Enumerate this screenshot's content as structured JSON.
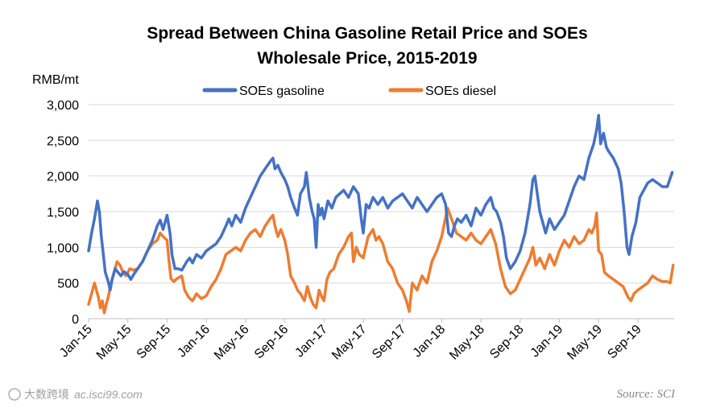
{
  "chart_data": {
    "type": "line",
    "title_line1": "Spread Between China Gasoline Retail Price and SOEs",
    "title_line2": "Wholesale Price, 2015-2019",
    "ylabel": "RMB/mt",
    "ylim": [
      0,
      3000
    ],
    "yticks": [
      0,
      500,
      1000,
      1500,
      2000,
      2500,
      3000
    ],
    "ytick_labels": [
      "0",
      "500",
      "1,000",
      "1,500",
      "2,000",
      "2,500",
      "3,000"
    ],
    "xlim": [
      0,
      59.7
    ],
    "xticks": [
      0,
      4,
      8,
      12,
      16,
      20,
      24,
      28,
      32,
      36,
      40,
      44,
      48,
      52,
      56
    ],
    "xtick_labels": [
      "Jan-15",
      "May-15",
      "Sep-15",
      "Jan-16",
      "May-16",
      "Sep-16",
      "Jan-17",
      "May-17",
      "Sep-17",
      "Jan-18",
      "May-18",
      "Sep-18",
      "Jan-19",
      "May-19",
      "Sep-19"
    ],
    "x_unit": "months since Jan-2015",
    "grid": true,
    "legend_position": "top-center",
    "series": [
      {
        "name": "SOEs gasoline",
        "color": "#4472C4",
        "points": [
          [
            0,
            950
          ],
          [
            0.3,
            1200
          ],
          [
            0.6,
            1400
          ],
          [
            0.9,
            1650
          ],
          [
            1.1,
            1500
          ],
          [
            1.3,
            1150
          ],
          [
            1.5,
            900
          ],
          [
            1.7,
            650
          ],
          [
            2.0,
            520
          ],
          [
            2.2,
            400
          ],
          [
            2.4,
            550
          ],
          [
            2.7,
            700
          ],
          [
            3.0,
            650
          ],
          [
            3.3,
            600
          ],
          [
            3.6,
            660
          ],
          [
            4.0,
            620
          ],
          [
            4.3,
            550
          ],
          [
            4.6,
            620
          ],
          [
            5.0,
            700
          ],
          [
            5.5,
            800
          ],
          [
            6.0,
            950
          ],
          [
            6.5,
            1100
          ],
          [
            7.0,
            1300
          ],
          [
            7.3,
            1380
          ],
          [
            7.6,
            1250
          ],
          [
            8.0,
            1450
          ],
          [
            8.3,
            1200
          ],
          [
            8.5,
            900
          ],
          [
            8.8,
            700
          ],
          [
            9.1,
            700
          ],
          [
            9.5,
            680
          ],
          [
            10.0,
            800
          ],
          [
            10.3,
            850
          ],
          [
            10.6,
            780
          ],
          [
            11.0,
            900
          ],
          [
            11.5,
            850
          ],
          [
            12.0,
            950
          ],
          [
            12.5,
            1000
          ],
          [
            13.0,
            1050
          ],
          [
            13.5,
            1150
          ],
          [
            14.0,
            1300
          ],
          [
            14.3,
            1400
          ],
          [
            14.6,
            1300
          ],
          [
            15.0,
            1450
          ],
          [
            15.5,
            1350
          ],
          [
            16.0,
            1550
          ],
          [
            16.5,
            1700
          ],
          [
            17.0,
            1850
          ],
          [
            17.5,
            2000
          ],
          [
            18.0,
            2100
          ],
          [
            18.5,
            2200
          ],
          [
            18.8,
            2250
          ],
          [
            19.0,
            2100
          ],
          [
            19.3,
            2150
          ],
          [
            19.6,
            2050
          ],
          [
            20.0,
            1950
          ],
          [
            20.3,
            1850
          ],
          [
            20.6,
            1700
          ],
          [
            21.0,
            1550
          ],
          [
            21.3,
            1450
          ],
          [
            21.6,
            1750
          ],
          [
            22.0,
            1850
          ],
          [
            22.2,
            2050
          ],
          [
            22.5,
            1700
          ],
          [
            22.8,
            1500
          ],
          [
            23.0,
            1400
          ],
          [
            23.2,
            1000
          ],
          [
            23.4,
            1600
          ],
          [
            23.6,
            1450
          ],
          [
            23.8,
            1550
          ],
          [
            24.0,
            1400
          ],
          [
            24.4,
            1650
          ],
          [
            24.8,
            1550
          ],
          [
            25.2,
            1700
          ],
          [
            25.6,
            1750
          ],
          [
            26.0,
            1800
          ],
          [
            26.5,
            1700
          ],
          [
            27.0,
            1850
          ],
          [
            27.5,
            1750
          ],
          [
            27.8,
            1400
          ],
          [
            28.0,
            1200
          ],
          [
            28.3,
            1600
          ],
          [
            28.6,
            1550
          ],
          [
            29.0,
            1700
          ],
          [
            29.5,
            1600
          ],
          [
            30.0,
            1700
          ],
          [
            30.5,
            1550
          ],
          [
            31.0,
            1650
          ],
          [
            31.5,
            1700
          ],
          [
            32.0,
            1750
          ],
          [
            32.5,
            1650
          ],
          [
            33.0,
            1550
          ],
          [
            33.5,
            1700
          ],
          [
            34.0,
            1600
          ],
          [
            34.5,
            1500
          ],
          [
            35.0,
            1600
          ],
          [
            35.5,
            1700
          ],
          [
            36.0,
            1750
          ],
          [
            36.4,
            1600
          ],
          [
            36.7,
            1200
          ],
          [
            37.0,
            1150
          ],
          [
            37.3,
            1300
          ],
          [
            37.6,
            1400
          ],
          [
            38.0,
            1350
          ],
          [
            38.5,
            1450
          ],
          [
            39.0,
            1300
          ],
          [
            39.5,
            1550
          ],
          [
            40.0,
            1450
          ],
          [
            40.5,
            1600
          ],
          [
            41.0,
            1700
          ],
          [
            41.3,
            1550
          ],
          [
            41.6,
            1500
          ],
          [
            42.0,
            1350
          ],
          [
            42.3,
            1150
          ],
          [
            42.6,
            850
          ],
          [
            43.0,
            700
          ],
          [
            43.5,
            800
          ],
          [
            44.0,
            950
          ],
          [
            44.5,
            1200
          ],
          [
            45.0,
            1600
          ],
          [
            45.3,
            1950
          ],
          [
            45.5,
            2000
          ],
          [
            45.8,
            1700
          ],
          [
            46.0,
            1500
          ],
          [
            46.3,
            1350
          ],
          [
            46.6,
            1200
          ],
          [
            47.0,
            1400
          ],
          [
            47.5,
            1250
          ],
          [
            48.0,
            1350
          ],
          [
            48.5,
            1450
          ],
          [
            49.0,
            1650
          ],
          [
            49.5,
            1850
          ],
          [
            50.0,
            2000
          ],
          [
            50.5,
            1950
          ],
          [
            51.0,
            2250
          ],
          [
            51.5,
            2450
          ],
          [
            51.8,
            2650
          ],
          [
            52.0,
            2850
          ],
          [
            52.2,
            2450
          ],
          [
            52.5,
            2600
          ],
          [
            52.8,
            2400
          ],
          [
            53.0,
            2350
          ],
          [
            53.5,
            2250
          ],
          [
            54.0,
            2100
          ],
          [
            54.3,
            1900
          ],
          [
            54.6,
            1500
          ],
          [
            54.9,
            1000
          ],
          [
            55.1,
            900
          ],
          [
            55.4,
            1150
          ],
          [
            55.8,
            1350
          ],
          [
            56.2,
            1700
          ],
          [
            56.6,
            1800
          ],
          [
            57.0,
            1900
          ],
          [
            57.5,
            1950
          ],
          [
            58.0,
            1900
          ],
          [
            58.5,
            1850
          ],
          [
            59.0,
            1850
          ],
          [
            59.5,
            2050
          ]
        ]
      },
      {
        "name": "SOEs diesel",
        "color": "#ED7D31",
        "points": [
          [
            0,
            200
          ],
          [
            0.3,
            350
          ],
          [
            0.6,
            500
          ],
          [
            0.8,
            400
          ],
          [
            1.0,
            300
          ],
          [
            1.2,
            150
          ],
          [
            1.4,
            250
          ],
          [
            1.6,
            80
          ],
          [
            1.8,
            200
          ],
          [
            2.0,
            300
          ],
          [
            2.3,
            500
          ],
          [
            2.6,
            650
          ],
          [
            2.9,
            800
          ],
          [
            3.2,
            750
          ],
          [
            3.5,
            650
          ],
          [
            3.8,
            600
          ],
          [
            4.2,
            700
          ],
          [
            4.6,
            680
          ],
          [
            5.0,
            700
          ],
          [
            5.5,
            800
          ],
          [
            6.0,
            950
          ],
          [
            6.5,
            1050
          ],
          [
            7.0,
            1100
          ],
          [
            7.3,
            1200
          ],
          [
            7.6,
            1150
          ],
          [
            8.0,
            1100
          ],
          [
            8.2,
            800
          ],
          [
            8.4,
            560
          ],
          [
            8.7,
            520
          ],
          [
            9.0,
            560
          ],
          [
            9.5,
            600
          ],
          [
            9.8,
            400
          ],
          [
            10.2,
            300
          ],
          [
            10.6,
            250
          ],
          [
            11.0,
            350
          ],
          [
            11.5,
            280
          ],
          [
            12.0,
            320
          ],
          [
            12.5,
            450
          ],
          [
            13.0,
            550
          ],
          [
            13.5,
            700
          ],
          [
            14.0,
            900
          ],
          [
            14.5,
            950
          ],
          [
            15.0,
            1000
          ],
          [
            15.5,
            950
          ],
          [
            16.0,
            1100
          ],
          [
            16.5,
            1200
          ],
          [
            17.0,
            1250
          ],
          [
            17.5,
            1150
          ],
          [
            18.0,
            1300
          ],
          [
            18.5,
            1400
          ],
          [
            18.8,
            1450
          ],
          [
            19.0,
            1300
          ],
          [
            19.3,
            1150
          ],
          [
            19.6,
            1250
          ],
          [
            20.0,
            1100
          ],
          [
            20.3,
            900
          ],
          [
            20.6,
            600
          ],
          [
            21.0,
            500
          ],
          [
            21.3,
            400
          ],
          [
            21.6,
            350
          ],
          [
            22.0,
            250
          ],
          [
            22.3,
            450
          ],
          [
            22.6,
            300
          ],
          [
            22.9,
            200
          ],
          [
            23.2,
            150
          ],
          [
            23.5,
            400
          ],
          [
            23.8,
            300
          ],
          [
            24.0,
            250
          ],
          [
            24.3,
            550
          ],
          [
            24.6,
            650
          ],
          [
            25.0,
            700
          ],
          [
            25.5,
            900
          ],
          [
            26.0,
            1000
          ],
          [
            26.5,
            1150
          ],
          [
            26.8,
            1200
          ],
          [
            27.0,
            800
          ],
          [
            27.3,
            1000
          ],
          [
            27.6,
            900
          ],
          [
            28.0,
            850
          ],
          [
            28.5,
            1150
          ],
          [
            29.0,
            1250
          ],
          [
            29.3,
            1100
          ],
          [
            29.6,
            1150
          ],
          [
            30.0,
            1050
          ],
          [
            30.5,
            800
          ],
          [
            31.0,
            700
          ],
          [
            31.5,
            500
          ],
          [
            32.0,
            400
          ],
          [
            32.4,
            250
          ],
          [
            32.7,
            100
          ],
          [
            33.0,
            500
          ],
          [
            33.5,
            400
          ],
          [
            34.0,
            600
          ],
          [
            34.5,
            500
          ],
          [
            35.0,
            800
          ],
          [
            35.5,
            950
          ],
          [
            36.0,
            1150
          ],
          [
            36.3,
            1350
          ],
          [
            36.6,
            1550
          ],
          [
            37.0,
            1400
          ],
          [
            37.5,
            1200
          ],
          [
            38.0,
            1150
          ],
          [
            38.5,
            1100
          ],
          [
            39.0,
            1200
          ],
          [
            39.5,
            1100
          ],
          [
            40.0,
            1050
          ],
          [
            40.5,
            1150
          ],
          [
            41.0,
            1250
          ],
          [
            41.5,
            1050
          ],
          [
            42.0,
            700
          ],
          [
            42.5,
            450
          ],
          [
            43.0,
            350
          ],
          [
            43.5,
            400
          ],
          [
            44.0,
            550
          ],
          [
            44.5,
            700
          ],
          [
            45.0,
            850
          ],
          [
            45.3,
            1000
          ],
          [
            45.6,
            750
          ],
          [
            46.0,
            850
          ],
          [
            46.5,
            700
          ],
          [
            47.0,
            900
          ],
          [
            47.5,
            750
          ],
          [
            48.0,
            950
          ],
          [
            48.5,
            1100
          ],
          [
            49.0,
            1000
          ],
          [
            49.5,
            1150
          ],
          [
            50.0,
            1050
          ],
          [
            50.5,
            1100
          ],
          [
            51.0,
            1250
          ],
          [
            51.3,
            1200
          ],
          [
            51.6,
            1300
          ],
          [
            51.8,
            1480
          ],
          [
            52.0,
            950
          ],
          [
            52.3,
            900
          ],
          [
            52.6,
            650
          ],
          [
            53.0,
            600
          ],
          [
            53.5,
            550
          ],
          [
            54.0,
            500
          ],
          [
            54.5,
            450
          ],
          [
            55.0,
            300
          ],
          [
            55.3,
            250
          ],
          [
            55.6,
            350
          ],
          [
            56.0,
            400
          ],
          [
            56.5,
            450
          ],
          [
            57.0,
            500
          ],
          [
            57.5,
            600
          ],
          [
            58.0,
            550
          ],
          [
            58.5,
            520
          ],
          [
            59.0,
            520
          ],
          [
            59.3,
            500
          ],
          [
            59.6,
            750
          ]
        ]
      }
    ],
    "watermark_left": "ac.isci99.com",
    "watermark_brand": "大数跨境",
    "source": "Source: SCI"
  }
}
